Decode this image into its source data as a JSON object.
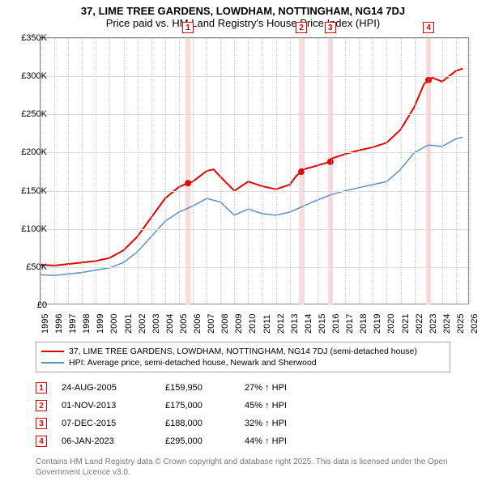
{
  "title": {
    "line1": "37, LIME TREE GARDENS, LOWDHAM, NOTTINGHAM, NG14 7DJ",
    "line2": "Price paid vs. HM Land Registry's House Price Index (HPI)"
  },
  "chart": {
    "type": "line",
    "background_color": "#ffffff",
    "grid_color": "#dddddd",
    "border_color": "#888888",
    "x": {
      "min": 1995,
      "max": 2026,
      "ticks": [
        1995,
        1996,
        1997,
        1998,
        1999,
        2000,
        2001,
        2002,
        2003,
        2004,
        2005,
        2006,
        2007,
        2008,
        2009,
        2010,
        2011,
        2012,
        2013,
        2014,
        2015,
        2016,
        2017,
        2018,
        2019,
        2020,
        2021,
        2022,
        2023,
        2024,
        2025,
        2026
      ]
    },
    "y": {
      "min": 0,
      "max": 350000,
      "tick_step": 50000,
      "labels": [
        "£0",
        "£50K",
        "£100K",
        "£150K",
        "£200K",
        "£250K",
        "£300K",
        "£350K"
      ]
    },
    "series": [
      {
        "name": "37, LIME TREE GARDENS, LOWDHAM, NOTTINGHAM, NG14 7DJ (semi-detached house)",
        "color": "#e00000",
        "width": 2,
        "points": [
          [
            1995,
            53000
          ],
          [
            1996,
            52000
          ],
          [
            1997,
            54000
          ],
          [
            1998,
            56000
          ],
          [
            1999,
            58000
          ],
          [
            2000,
            62000
          ],
          [
            2001,
            72000
          ],
          [
            2002,
            90000
          ],
          [
            2003,
            115000
          ],
          [
            2004,
            140000
          ],
          [
            2005,
            155000
          ],
          [
            2005.65,
            159950
          ],
          [
            2006,
            162000
          ],
          [
            2007,
            176000
          ],
          [
            2007.5,
            178000
          ],
          [
            2008,
            168000
          ],
          [
            2009,
            150000
          ],
          [
            2010,
            162000
          ],
          [
            2011,
            156000
          ],
          [
            2012,
            152000
          ],
          [
            2013,
            158000
          ],
          [
            2013.5,
            170000
          ],
          [
            2013.84,
            175000
          ],
          [
            2014,
            178000
          ],
          [
            2015,
            183000
          ],
          [
            2015.93,
            188000
          ],
          [
            2016,
            192000
          ],
          [
            2017,
            198000
          ],
          [
            2018,
            203000
          ],
          [
            2019,
            207000
          ],
          [
            2020,
            213000
          ],
          [
            2021,
            230000
          ],
          [
            2022,
            260000
          ],
          [
            2022.7,
            290000
          ],
          [
            2023.02,
            295000
          ],
          [
            2023.3,
            298000
          ],
          [
            2024,
            293000
          ],
          [
            2025,
            307000
          ],
          [
            2025.5,
            310000
          ]
        ]
      },
      {
        "name": "HPI: Average price, semi-detached house, Newark and Sherwood",
        "color": "#5b8fc7",
        "width": 1.5,
        "points": [
          [
            1995,
            40000
          ],
          [
            1996,
            39000
          ],
          [
            1997,
            41000
          ],
          [
            1998,
            43000
          ],
          [
            1999,
            46000
          ],
          [
            2000,
            49000
          ],
          [
            2001,
            56000
          ],
          [
            2002,
            70000
          ],
          [
            2003,
            90000
          ],
          [
            2004,
            110000
          ],
          [
            2005,
            122000
          ],
          [
            2006,
            130000
          ],
          [
            2007,
            140000
          ],
          [
            2008,
            135000
          ],
          [
            2009,
            118000
          ],
          [
            2010,
            126000
          ],
          [
            2011,
            120000
          ],
          [
            2012,
            118000
          ],
          [
            2013,
            122000
          ],
          [
            2014,
            130000
          ],
          [
            2015,
            138000
          ],
          [
            2016,
            145000
          ],
          [
            2017,
            150000
          ],
          [
            2018,
            154000
          ],
          [
            2019,
            158000
          ],
          [
            2020,
            162000
          ],
          [
            2021,
            178000
          ],
          [
            2022,
            200000
          ],
          [
            2023,
            210000
          ],
          [
            2024,
            208000
          ],
          [
            2025,
            218000
          ],
          [
            2025.5,
            220000
          ]
        ]
      }
    ],
    "sale_markers": [
      {
        "n": "1",
        "x": 2005.65,
        "y": 159950
      },
      {
        "n": "2",
        "x": 2013.84,
        "y": 175000
      },
      {
        "n": "3",
        "x": 2015.93,
        "y": 188000
      },
      {
        "n": "4",
        "x": 2023.02,
        "y": 295000
      }
    ],
    "marker_band_color": "#fbdcdc"
  },
  "legend": [
    {
      "color": "#e00000",
      "label": "37, LIME TREE GARDENS, LOWDHAM, NOTTINGHAM, NG14 7DJ (semi-detached house)"
    },
    {
      "color": "#5b8fc7",
      "label": "HPI: Average price, semi-detached house, Newark and Sherwood"
    }
  ],
  "transactions": [
    {
      "n": "1",
      "date": "24-AUG-2005",
      "price": "£159,950",
      "diff": "27% ↑ HPI"
    },
    {
      "n": "2",
      "date": "01-NOV-2013",
      "price": "£175,000",
      "diff": "45% ↑ HPI"
    },
    {
      "n": "3",
      "date": "07-DEC-2015",
      "price": "£188,000",
      "diff": "32% ↑ HPI"
    },
    {
      "n": "4",
      "date": "06-JAN-2023",
      "price": "£295,000",
      "diff": "44% ↑ HPI"
    }
  ],
  "footnote": "Contains HM Land Registry data © Crown copyright and database right 2025. This data is licensed under the Open Government Licence v3.0."
}
